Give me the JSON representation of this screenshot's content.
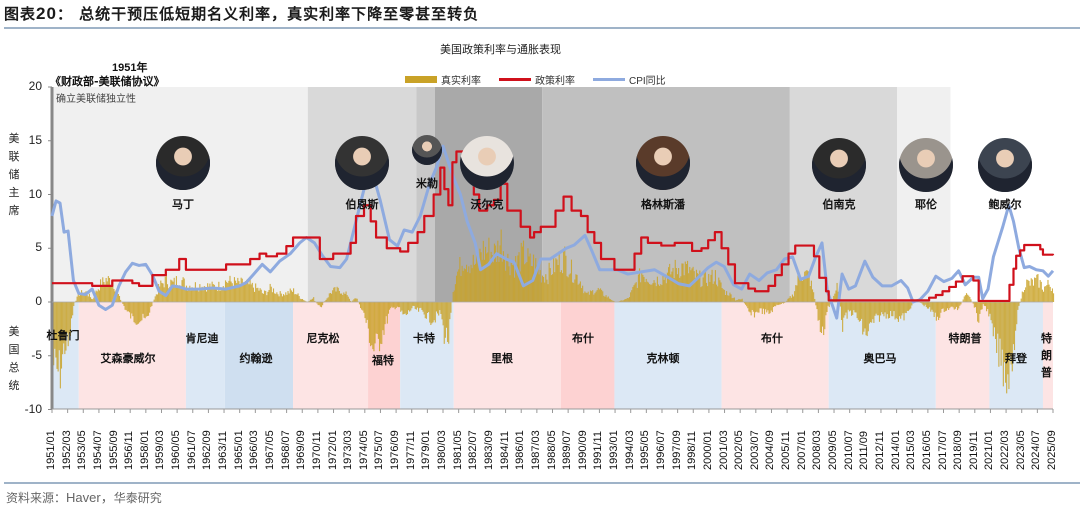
{
  "figure": {
    "title_prefix": "图表",
    "title_number": "20",
    "title_text": "： 总统干预压低短期名义利率，真实利率下降至零甚至转负",
    "source_prefix": "资料来源：",
    "source_en": "Haver，",
    "source_suffix": "华泰研究"
  },
  "annotation": {
    "year": "1951年",
    "accord": "《财政部-美联储协议》",
    "independence": "确立美联储独立性"
  },
  "axis_labels": {
    "fed_chair": "美联储主席",
    "president": "美国总统"
  },
  "chart_data": {
    "type": "line",
    "title": "美国政策利率与通胀表现",
    "xlabel": "",
    "ylabel": "",
    "ylim": [
      -10,
      20
    ],
    "yticks": [
      20,
      15,
      10,
      5,
      0,
      -5,
      -10
    ],
    "grid": false,
    "legend_position": "top",
    "legend": [
      {
        "name": "真实利率",
        "color": "#c9a227",
        "kind": "area"
      },
      {
        "name": "政策利率",
        "color": "#d0101b",
        "kind": "line"
      },
      {
        "name": "CPI同比",
        "color": "#8eaadf",
        "kind": "line"
      }
    ],
    "x_ticks": [
      "1951/01",
      "1952/03",
      "1953/05",
      "1954/07",
      "1955/09",
      "1956/11",
      "1958/01",
      "1959/03",
      "1960/05",
      "1961/07",
      "1962/09",
      "1963/11",
      "1965/01",
      "1966/03",
      "1967/05",
      "1968/07",
      "1969/09",
      "1970/11",
      "1972/01",
      "1973/03",
      "1974/05",
      "1975/07",
      "1976/09",
      "1977/11",
      "1979/01",
      "1980/03",
      "1981/05",
      "1982/07",
      "1983/09",
      "1984/11",
      "1986/01",
      "1987/03",
      "1988/05",
      "1989/07",
      "1990/09",
      "1991/11",
      "1993/01",
      "1994/03",
      "1995/05",
      "1996/07",
      "1997/09",
      "1998/11",
      "2000/01",
      "2001/03",
      "2002/05",
      "2003/07",
      "2004/09",
      "2005/11",
      "2007/01",
      "2008/03",
      "2009/05",
      "2010/07",
      "2011/09",
      "2012/11",
      "2014/01",
      "2015/03",
      "2016/05",
      "2017/07",
      "2018/09",
      "2019/11",
      "2021/01",
      "2022/03",
      "2023/05",
      "2024/07",
      "2025/09"
    ],
    "series": [
      {
        "name": "政策利率",
        "x": [
          1951.0,
          1953.5,
          1954.0,
          1954.5,
          1955.5,
          1956.0,
          1957.0,
          1957.5,
          1958.0,
          1958.5,
          1959.5,
          1960.5,
          1961.0,
          1963.5,
          1964.0,
          1965.0,
          1965.8,
          1966.5,
          1967.0,
          1967.8,
          1968.5,
          1969.0,
          1969.5,
          1970.5,
          1971.0,
          1972.0,
          1972.8,
          1973.3,
          1973.7,
          1974.3,
          1974.8,
          1975.2,
          1976.0,
          1977.0,
          1977.6,
          1978.3,
          1978.8,
          1979.5,
          1980.0,
          1980.3,
          1980.6,
          1980.9,
          1981.2,
          1981.7,
          1982.0,
          1982.5,
          1982.9,
          1983.5,
          1984.0,
          1984.5,
          1985.0,
          1986.0,
          1986.7,
          1987.0,
          1987.5,
          1988.0,
          1988.6,
          1989.2,
          1989.8,
          1990.5,
          1991.0,
          1991.5,
          1992.0,
          1993.0,
          1994.0,
          1994.5,
          1995.0,
          1995.5,
          1996.5,
          1997.5,
          1998.0,
          1998.8,
          1999.5,
          2000.0,
          2000.5,
          2001.0,
          2001.5,
          2002.0,
          2003.0,
          2003.5,
          2004.5,
          2005.0,
          2005.5,
          2006.0,
          2006.5,
          2007.5,
          2007.9,
          2008.3,
          2008.8,
          2009.0,
          2015.9,
          2016.5,
          2017.0,
          2017.5,
          2018.0,
          2018.5,
          2019.0,
          2019.5,
          2019.8,
          2020.2,
          2022.2,
          2022.5,
          2022.8,
          2023.0,
          2023.3,
          2023.6,
          2024.6,
          2024.8,
          2025.0,
          2025.75
        ],
        "values": [
          1.75,
          1.75,
          1.5,
          1.5,
          2.0,
          2.0,
          1.75,
          1.5,
          1.5,
          2.5,
          3.0,
          4.0,
          3.0,
          3.0,
          3.5,
          3.5,
          4.0,
          4.5,
          4.25,
          4.5,
          5.2,
          6.0,
          6.0,
          6.0,
          4.0,
          4.5,
          4.5,
          5.5,
          8.0,
          9.0,
          7.5,
          6.0,
          5.0,
          4.7,
          5.5,
          6.5,
          8.0,
          10.0,
          12.5,
          10.5,
          9.0,
          13.0,
          14.0,
          14.0,
          12.0,
          10.0,
          8.5,
          9.0,
          9.5,
          11.0,
          8.5,
          7.0,
          6.0,
          6.5,
          7.0,
          7.0,
          8.5,
          9.8,
          8.5,
          8.0,
          6.5,
          5.5,
          4.0,
          3.0,
          3.0,
          4.5,
          6.0,
          5.5,
          5.25,
          5.5,
          5.5,
          4.75,
          5.0,
          5.75,
          6.5,
          5.0,
          3.5,
          1.75,
          1.25,
          1.0,
          1.5,
          2.5,
          3.5,
          4.5,
          5.25,
          5.25,
          4.25,
          2.25,
          1.0,
          0.15,
          0.15,
          0.4,
          0.65,
          1.0,
          1.4,
          1.9,
          2.4,
          2.4,
          2.0,
          0.1,
          0.1,
          1.6,
          3.1,
          4.3,
          4.8,
          5.3,
          5.3,
          4.9,
          4.4,
          4.35
        ]
      },
      {
        "name": "CPI同比",
        "x": [
          1951.0,
          1951.3,
          1951.6,
          1951.9,
          1952.2,
          1952.6,
          1953.0,
          1953.5,
          1954.0,
          1954.5,
          1955.0,
          1955.5,
          1956.0,
          1956.5,
          1957.0,
          1957.5,
          1958.0,
          1958.5,
          1959.0,
          1959.5,
          1960.0,
          1960.5,
          1961.0,
          1962.0,
          1963.0,
          1964.0,
          1965.0,
          1965.5,
          1966.0,
          1966.7,
          1967.3,
          1968.0,
          1968.8,
          1969.5,
          1970.0,
          1970.6,
          1971.2,
          1971.8,
          1972.5,
          1973.0,
          1973.6,
          1974.3,
          1974.9,
          1975.5,
          1976.2,
          1976.8,
          1977.3,
          1977.9,
          1978.5,
          1979.2,
          1979.7,
          1980.2,
          1980.6,
          1981.0,
          1981.5,
          1982.0,
          1982.6,
          1983.0,
          1983.6,
          1984.2,
          1984.9,
          1985.5,
          1986.2,
          1986.9,
          1987.5,
          1988.2,
          1988.8,
          1989.4,
          1990.0,
          1990.8,
          1991.3,
          1991.9,
          1992.5,
          1993.2,
          1994.0,
          1995.0,
          1996.0,
          1997.0,
          1997.8,
          1998.6,
          1999.2,
          2000.0,
          2000.6,
          2001.2,
          2001.9,
          2002.5,
          2003.1,
          2003.8,
          2004.4,
          2005.1,
          2005.7,
          2006.3,
          2006.9,
          2007.5,
          2008.0,
          2008.5,
          2008.9,
          2009.3,
          2009.6,
          2010.0,
          2010.5,
          2011.0,
          2011.7,
          2012.3,
          2013.0,
          2013.7,
          2014.4,
          2014.9,
          2015.3,
          2015.8,
          2016.4,
          2017.0,
          2017.6,
          2018.2,
          2018.7,
          2019.2,
          2019.8,
          2020.2,
          2020.5,
          2020.9,
          2021.3,
          2021.6,
          2022.0,
          2022.45,
          2022.8,
          2023.2,
          2023.6,
          2024.0,
          2024.5,
          2025.0,
          2025.4,
          2025.75
        ],
        "values": [
          8.0,
          9.4,
          9.2,
          6.5,
          6.6,
          2.0,
          0.8,
          0.7,
          1.2,
          -0.3,
          -0.7,
          -0.3,
          1.5,
          2.8,
          3.6,
          3.4,
          3.5,
          2.5,
          1.0,
          0.6,
          1.5,
          1.4,
          1.2,
          1.2,
          1.3,
          1.2,
          1.5,
          1.8,
          2.5,
          3.5,
          2.8,
          3.8,
          4.5,
          5.5,
          6.0,
          5.5,
          4.3,
          3.3,
          3.2,
          4.0,
          7.0,
          10.5,
          12.2,
          9.5,
          5.8,
          5.2,
          6.7,
          6.5,
          8.0,
          11.0,
          12.5,
          14.5,
          13.0,
          11.5,
          10.0,
          7.5,
          5.5,
          3.0,
          3.5,
          4.5,
          4.0,
          3.7,
          1.5,
          2.0,
          4.0,
          4.0,
          4.5,
          5.0,
          5.3,
          6.2,
          4.8,
          3.0,
          3.0,
          3.0,
          2.6,
          2.8,
          3.0,
          2.3,
          1.7,
          1.5,
          2.2,
          3.2,
          3.7,
          3.3,
          1.6,
          1.2,
          2.6,
          2.0,
          2.7,
          3.0,
          4.0,
          4.2,
          2.1,
          2.4,
          4.1,
          5.5,
          1.0,
          -0.4,
          -1.5,
          2.6,
          1.2,
          1.5,
          3.8,
          2.3,
          1.5,
          1.5,
          2.0,
          1.3,
          0.0,
          0.2,
          1.0,
          2.4,
          1.9,
          2.2,
          2.9,
          1.6,
          2.3,
          2.3,
          0.3,
          1.2,
          4.2,
          5.4,
          7.0,
          9.0,
          7.5,
          5.0,
          3.2,
          3.3,
          3.0,
          2.9,
          2.4,
          2.9
        ]
      },
      {
        "name": "真实利率",
        "note": "area = 政策利率 − CPI同比 (plotted as filled area around zero)"
      }
    ],
    "chair_periods": [
      {
        "name": "马丁",
        "start": 1951.2,
        "end": 1970.1
      },
      {
        "name": "伯恩斯",
        "start": 1970.1,
        "end": 1978.2
      },
      {
        "name": "米勒",
        "start": 1978.2,
        "end": 1979.6
      },
      {
        "name": "沃尔克",
        "start": 1979.6,
        "end": 1987.6
      },
      {
        "name": "格林斯潘",
        "start": 1987.6,
        "end": 2006.1
      },
      {
        "name": "伯南克",
        "start": 2006.1,
        "end": 2014.1
      },
      {
        "name": "耶伦",
        "start": 2014.1,
        "end": 2018.1
      },
      {
        "name": "鲍威尔",
        "start": 2018.1,
        "end": 2025.75
      }
    ],
    "president_periods": [
      {
        "name": "杜鲁门",
        "start": 1951.0,
        "end": 1953.0
      },
      {
        "name": "艾森豪威尔",
        "start": 1953.0,
        "end": 1961.0
      },
      {
        "name": "肯尼迪",
        "start": 1961.0,
        "end": 1963.9
      },
      {
        "name": "约翰逊",
        "start": 1963.9,
        "end": 1969.0
      },
      {
        "name": "尼克松",
        "start": 1969.0,
        "end": 1974.6
      },
      {
        "name": "福特",
        "start": 1974.6,
        "end": 1977.0
      },
      {
        "name": "卡特",
        "start": 1977.0,
        "end": 1981.0
      },
      {
        "name": "里根",
        "start": 1981.0,
        "end": 1989.0
      },
      {
        "name": "布什",
        "start": 1989.0,
        "end": 1993.0
      },
      {
        "name": "克林顿",
        "start": 1993.0,
        "end": 2001.0
      },
      {
        "name": "布什",
        "start": 2001.0,
        "end": 2009.0
      },
      {
        "name": "奥巴马",
        "start": 2009.0,
        "end": 2017.0
      },
      {
        "name": "特朗普",
        "start": 2017.0,
        "end": 2021.0
      },
      {
        "name": "拜登",
        "start": 2021.0,
        "end": 2025.0
      },
      {
        "name": "特朗普",
        "start": 2025.0,
        "end": 2025.75
      }
    ]
  },
  "colors": {
    "real_rate": "#c9a227",
    "policy_rate": "#d0101b",
    "cpi": "#8eaadf",
    "rule": "#9fb3c8"
  }
}
